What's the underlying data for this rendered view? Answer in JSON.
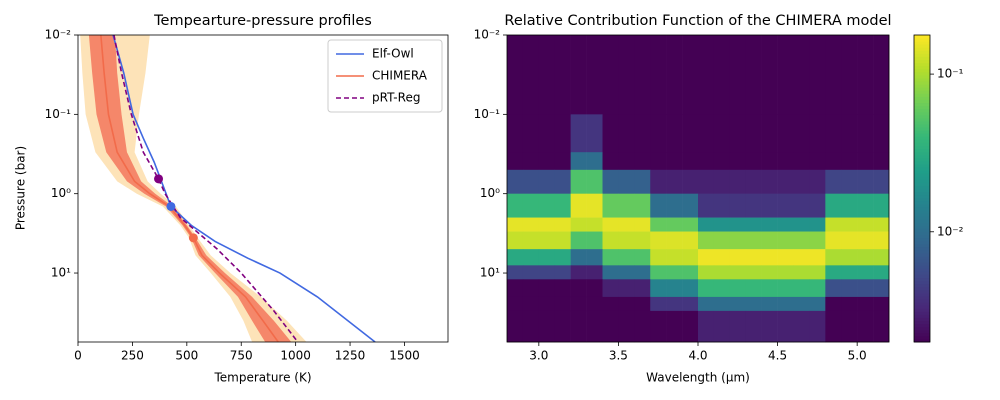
{
  "chart_data": [
    {
      "type": "line",
      "title": "Tempearture-pressure profiles",
      "xlabel": "Temperature (K)",
      "ylabel": "Pressure (bar)",
      "xlim": [
        0,
        1700
      ],
      "xticks": [
        0,
        250,
        500,
        750,
        1000,
        1250,
        1500
      ],
      "ylim": [
        0.01,
        74
      ],
      "yscale": "log",
      "invert_y": true,
      "yticks": [
        {
          "value": 0.01,
          "label": "10⁻²"
        },
        {
          "value": 0.1,
          "label": "10⁻¹"
        },
        {
          "value": 1,
          "label": "10⁰"
        },
        {
          "value": 10,
          "label": "10¹"
        }
      ],
      "legend": "upper right",
      "series": [
        {
          "name": "Elf-Owl",
          "color": "#4169e1",
          "linestyle": "solid",
          "x": [
            161,
            210,
            253,
            300,
            350,
            427,
            520,
            630,
            780,
            928,
            1100,
            1365
          ],
          "values": [
            0.01,
            0.03,
            0.1,
            0.2,
            0.4,
            1.45,
            2.5,
            4,
            6.5,
            10,
            20,
            74
          ],
          "marker": {
            "x": 427,
            "value": 1.45
          }
        },
        {
          "name": "CHIMERA",
          "color": "#f26b4a",
          "linestyle": "solid",
          "x": [
            105,
            120,
            140,
            180,
            260,
            330,
            420,
            490,
            530,
            570,
            650,
            770,
            850,
            920
          ],
          "values": [
            0.01,
            0.03,
            0.1,
            0.3,
            0.7,
            1.0,
            1.45,
            2.5,
            3.6,
            6,
            10,
            20,
            40,
            74
          ],
          "marker": {
            "x": 530,
            "value": 3.6
          },
          "bands": [
            {
              "color": "#fde3b8",
              "low": [
                10,
                20,
                35,
                80,
                180,
                270,
                390,
                470,
                510,
                540,
                610,
                700,
                760,
                800
              ],
              "high": [
                330,
                310,
                280,
                260,
                320,
                380,
                450,
                510,
                550,
                610,
                700,
                840,
                960,
                1050
              ]
            },
            {
              "color": "#f5876a",
              "low": [
                50,
                65,
                85,
                130,
                225,
                305,
                405,
                480,
                520,
                555,
                630,
                735,
                800,
                860
              ],
              "high": [
                170,
                180,
                200,
                225,
                290,
                355,
                435,
                500,
                540,
                590,
                675,
                800,
                900,
                980
              ]
            }
          ]
        },
        {
          "name": "pRT-Reg",
          "color": "#800080",
          "linestyle": "dashed",
          "x": [
            165,
            200,
            245,
            300,
            370,
            400,
            470,
            640,
            750,
            900,
            1010
          ],
          "values": [
            0.01,
            0.03,
            0.1,
            0.3,
            0.65,
            1,
            2,
            5,
            10,
            30,
            74
          ],
          "marker": {
            "x": 370,
            "value": 0.65
          }
        }
      ]
    },
    {
      "type": "heatmap",
      "title": "Relative Contribution Function of the CHIMERA model",
      "xlabel": "Wavelength (µm)",
      "xlim": [
        2.8,
        5.2
      ],
      "xticks": [
        {
          "value": 3,
          "label": "3.0"
        },
        3.5,
        {
          "value": 4,
          "label": "4.0"
        },
        4.5,
        {
          "value": 5,
          "label": "5.0"
        }
      ],
      "ylim": [
        0.01,
        74
      ],
      "yscale": "log",
      "invert_y": true,
      "yticks": [
        {
          "value": 0.01,
          "label": "10⁻²"
        },
        {
          "value": 0.1,
          "label": "10⁻¹"
        },
        {
          "value": 1,
          "label": "10⁰"
        },
        {
          "value": 10,
          "label": "10¹"
        }
      ],
      "x_edges": [
        2.8,
        2.9,
        3.0,
        3.1,
        3.2,
        3.3,
        3.4,
        3.5,
        3.6,
        3.7,
        3.8,
        3.9,
        4.0,
        4.1,
        4.2,
        4.3,
        4.4,
        4.5,
        4.6,
        4.7,
        4.8,
        4.9,
        5.0,
        5.1,
        5.2
      ],
      "y_edges": [
        0.01,
        0.1,
        0.3,
        0.5,
        1,
        2,
        3,
        5,
        8,
        12,
        20,
        30,
        74
      ],
      "colormap": "viridis",
      "clim": [
        0.002,
        0.177
      ],
      "cscale": "log",
      "cticks": [
        {
          "value": 0.01,
          "label": "10⁻²"
        },
        {
          "value": 0.1,
          "label": "10⁻¹"
        }
      ],
      "values": [
        [
          0.002,
          0.002,
          0.002,
          0.002,
          0.002,
          0.002,
          0.002,
          0.002,
          0.002,
          0.002,
          0.002,
          0.002,
          0.002,
          0.002,
          0.002,
          0.002,
          0.002,
          0.002,
          0.002,
          0.002,
          0.002,
          0.002,
          0.002,
          0.002
        ],
        [
          0.002,
          0.002,
          0.002,
          0.002,
          0.004,
          0.004,
          0.002,
          0.002,
          0.002,
          0.002,
          0.002,
          0.002,
          0.002,
          0.002,
          0.002,
          0.002,
          0.002,
          0.002,
          0.002,
          0.002,
          0.002,
          0.002,
          0.002,
          0.002
        ],
        [
          0.002,
          0.002,
          0.002,
          0.002,
          0.01,
          0.01,
          0.002,
          0.002,
          0.002,
          0.002,
          0.002,
          0.002,
          0.002,
          0.002,
          0.002,
          0.002,
          0.002,
          0.002,
          0.002,
          0.002,
          0.002,
          0.002,
          0.002,
          0.002
        ],
        [
          0.006,
          0.006,
          0.006,
          0.006,
          0.05,
          0.05,
          0.008,
          0.008,
          0.008,
          0.003,
          0.003,
          0.003,
          0.003,
          0.003,
          0.003,
          0.003,
          0.003,
          0.003,
          0.003,
          0.003,
          0.005,
          0.005,
          0.005,
          0.005
        ],
        [
          0.04,
          0.04,
          0.04,
          0.04,
          0.15,
          0.15,
          0.06,
          0.06,
          0.06,
          0.01,
          0.01,
          0.01,
          0.004,
          0.004,
          0.004,
          0.004,
          0.004,
          0.004,
          0.004,
          0.004,
          0.03,
          0.03,
          0.03,
          0.03
        ],
        [
          0.15,
          0.15,
          0.15,
          0.15,
          0.12,
          0.12,
          0.15,
          0.15,
          0.15,
          0.06,
          0.06,
          0.06,
          0.02,
          0.02,
          0.02,
          0.02,
          0.02,
          0.02,
          0.02,
          0.02,
          0.12,
          0.12,
          0.12,
          0.12
        ],
        [
          0.12,
          0.12,
          0.12,
          0.12,
          0.05,
          0.05,
          0.12,
          0.12,
          0.12,
          0.14,
          0.14,
          0.14,
          0.08,
          0.08,
          0.08,
          0.08,
          0.08,
          0.08,
          0.08,
          0.08,
          0.15,
          0.15,
          0.15,
          0.15
        ],
        [
          0.03,
          0.03,
          0.03,
          0.03,
          0.01,
          0.01,
          0.05,
          0.05,
          0.05,
          0.12,
          0.12,
          0.12,
          0.16,
          0.16,
          0.16,
          0.16,
          0.16,
          0.16,
          0.16,
          0.16,
          0.1,
          0.1,
          0.1,
          0.1
        ],
        [
          0.005,
          0.005,
          0.005,
          0.005,
          0.003,
          0.003,
          0.01,
          0.01,
          0.01,
          0.05,
          0.05,
          0.05,
          0.1,
          0.1,
          0.1,
          0.1,
          0.1,
          0.1,
          0.1,
          0.1,
          0.03,
          0.03,
          0.03,
          0.03
        ],
        [
          0.002,
          0.002,
          0.002,
          0.002,
          0.002,
          0.002,
          0.003,
          0.003,
          0.003,
          0.015,
          0.015,
          0.015,
          0.04,
          0.04,
          0.04,
          0.04,
          0.04,
          0.04,
          0.04,
          0.04,
          0.006,
          0.006,
          0.006,
          0.006
        ],
        [
          0.002,
          0.002,
          0.002,
          0.002,
          0.002,
          0.002,
          0.002,
          0.002,
          0.002,
          0.004,
          0.004,
          0.004,
          0.01,
          0.01,
          0.01,
          0.01,
          0.01,
          0.01,
          0.01,
          0.01,
          0.002,
          0.002,
          0.002,
          0.002
        ],
        [
          0.002,
          0.002,
          0.002,
          0.002,
          0.002,
          0.002,
          0.002,
          0.002,
          0.002,
          0.002,
          0.002,
          0.002,
          0.003,
          0.003,
          0.003,
          0.003,
          0.003,
          0.003,
          0.003,
          0.003,
          0.002,
          0.002,
          0.002,
          0.002
        ]
      ]
    }
  ]
}
